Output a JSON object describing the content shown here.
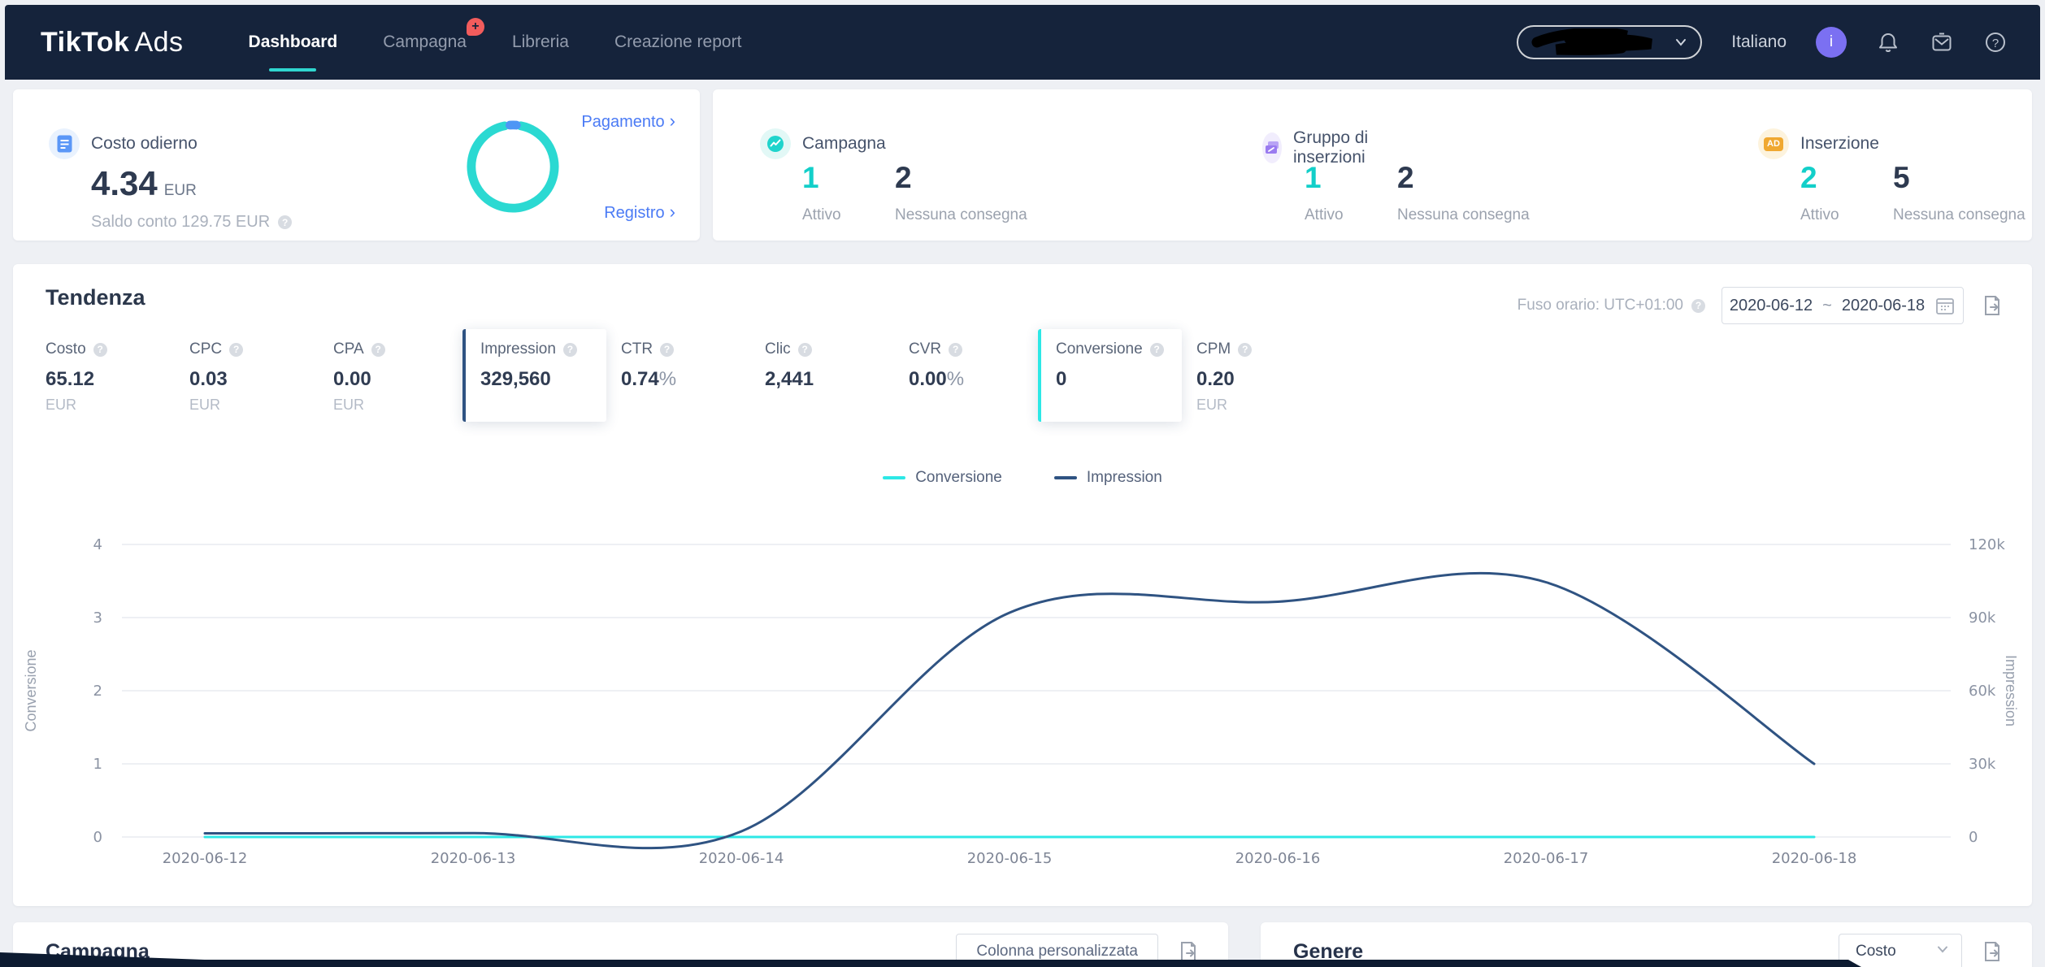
{
  "colors": {
    "nav_bg": "#15233b",
    "accent_teal": "#1fd4cc",
    "chart_cyan": "#2de8e6",
    "chart_navy": "#2f5382",
    "link_blue": "#4b7bf5",
    "badge_red": "#f25c5c",
    "avatar_purple": "#7b70f2",
    "donut_teal": "#2bd9d2",
    "donut_blue": "#4e96f5"
  },
  "nav": {
    "brand_bold": "TikTok",
    "brand_light": "Ads",
    "items": [
      {
        "label": "Dashboard",
        "active": true
      },
      {
        "label": "Campagna",
        "badge": "+"
      },
      {
        "label": "Libreria"
      },
      {
        "label": "Creazione report"
      }
    ],
    "language": "Italiano",
    "avatar_letter": "i"
  },
  "cost_card": {
    "title": "Costo odierno",
    "amount": "4.34",
    "currency": "EUR",
    "balance_label": "Saldo conto 129.75 EUR",
    "payment_link": "Pagamento",
    "log_link": "Registro",
    "link_chevron": "›"
  },
  "delivery": {
    "sections": [
      {
        "title": "Campagna",
        "active_value": "1",
        "active_label": "Attivo",
        "inactive_value": "2",
        "inactive_label": "Nessuna consegna"
      },
      {
        "title": "Gruppo di inserzioni",
        "active_value": "1",
        "active_label": "Attivo",
        "inactive_value": "2",
        "inactive_label": "Nessuna consegna"
      },
      {
        "title": "Inserzione",
        "active_value": "2",
        "active_label": "Attivo",
        "inactive_value": "5",
        "inactive_label": "Nessuna consegna"
      }
    ],
    "ad_icon_text": "AD"
  },
  "trend": {
    "title": "Tendenza",
    "timezone_label": "Fuso orario: UTC+01:00",
    "date_from": "2020-06-12",
    "date_separator": "~",
    "date_to": "2020-06-18",
    "metrics": [
      {
        "label": "Costo",
        "value": "65.12",
        "unit": "EUR"
      },
      {
        "label": "CPC",
        "value": "0.03",
        "unit": "EUR"
      },
      {
        "label": "CPA",
        "value": "0.00",
        "unit": "EUR"
      },
      {
        "label": "Impression",
        "value": "329,560",
        "selected": true,
        "selected_color": "#2f5382"
      },
      {
        "label": "CTR",
        "value": "0.74",
        "suffix": "%"
      },
      {
        "label": "Clic",
        "value": "2,441"
      },
      {
        "label": "CVR",
        "value": "0.00",
        "suffix": "%"
      },
      {
        "label": "Conversione",
        "value": "0",
        "selected": true,
        "selected_color": "#2de8e6"
      },
      {
        "label": "CPM",
        "value": "0.20",
        "unit": "EUR"
      }
    ]
  },
  "chart_data": {
    "type": "line",
    "smooth": true,
    "grid": true,
    "legend_position": "top",
    "legend": [
      "Conversione",
      "Impression"
    ],
    "x": [
      "2020-06-12",
      "2020-06-13",
      "2020-06-14",
      "2020-06-15",
      "2020-06-16",
      "2020-06-17",
      "2020-06-18"
    ],
    "series": [
      {
        "name": "Conversione",
        "axis": "left",
        "color": "#2de8e6",
        "values": [
          0,
          0,
          0,
          0,
          0,
          0,
          0
        ]
      },
      {
        "name": "Impression",
        "axis": "right",
        "color": "#2f5382",
        "values": [
          1500,
          1600,
          2300,
          92000,
          96500,
          104500,
          30000
        ]
      }
    ],
    "left_axis": {
      "label": "Conversione",
      "max": 4,
      "ticks": [
        "0",
        "1",
        "2",
        "3",
        "4"
      ]
    },
    "right_axis": {
      "label": "Impression",
      "max": 120000,
      "ticks": [
        "0",
        "30k",
        "60k",
        "90k",
        "120k"
      ]
    }
  },
  "tables": {
    "campaign_title": "Campagna",
    "custom_column_button": "Colonna personalizzata",
    "gender_title": "Genere",
    "gender_metric": "Costo"
  }
}
